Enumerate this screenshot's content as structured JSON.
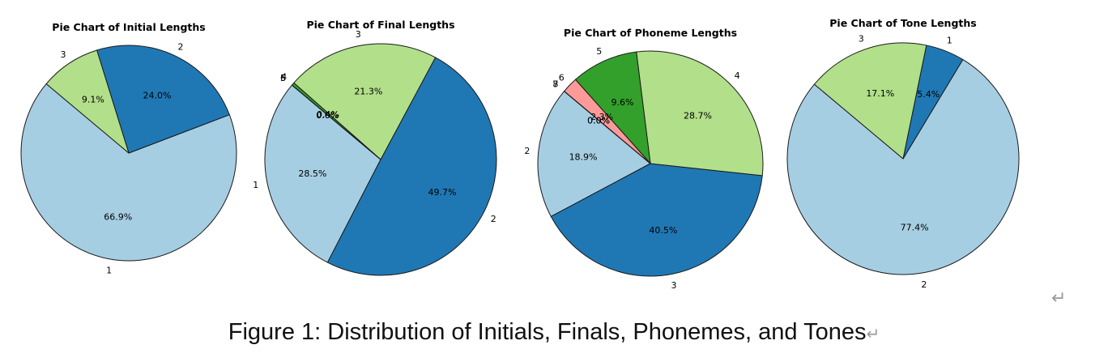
{
  "caption": "Figure 1: Distribution of Initials, Finals, Phonemes, and Tones",
  "return_mark": "↵",
  "chart_data": [
    {
      "type": "pie",
      "title": "Pie Chart of Initial Lengths",
      "start_angle_deg": 140,
      "slices": [
        {
          "label": "1",
          "value": 66.9,
          "pct_text": "66.9%",
          "color": "#a6cee3"
        },
        {
          "label": "2",
          "value": 24.0,
          "pct_text": "24.0%",
          "color": "#1f78b4"
        },
        {
          "label": "3",
          "value": 9.1,
          "pct_text": "9.1%",
          "color": "#b2df8a"
        }
      ]
    },
    {
      "type": "pie",
      "title": "Pie Chart of Final Lengths",
      "start_angle_deg": 140,
      "slices": [
        {
          "label": "1",
          "value": 28.5,
          "pct_text": "28.5%",
          "color": "#a6cee3"
        },
        {
          "label": "2",
          "value": 49.7,
          "pct_text": "49.7%",
          "color": "#1f78b4"
        },
        {
          "label": "3",
          "value": 21.3,
          "pct_text": "21.3%",
          "color": "#b2df8a"
        },
        {
          "label": "4",
          "value": 0.4,
          "pct_text": "0.4%",
          "color": "#33a02c"
        },
        {
          "label": "5",
          "value": 0.0,
          "pct_text": "0.0%",
          "color": "#fb9a99"
        },
        {
          "label": "6",
          "value": 0.0,
          "pct_text": "0.0%",
          "color": "#e31a1c"
        }
      ]
    },
    {
      "type": "pie",
      "title": "Pie Chart of Phoneme Lengths",
      "start_angle_deg": 140,
      "slices": [
        {
          "label": "2",
          "value": 18.9,
          "pct_text": "18.9%",
          "color": "#a6cee3"
        },
        {
          "label": "3",
          "value": 40.5,
          "pct_text": "40.5%",
          "color": "#1f78b4"
        },
        {
          "label": "4",
          "value": 28.7,
          "pct_text": "28.7%",
          "color": "#b2df8a"
        },
        {
          "label": "5",
          "value": 9.6,
          "pct_text": "9.6%",
          "color": "#33a02c"
        },
        {
          "label": "6",
          "value": 2.3,
          "pct_text": "2.3%",
          "color": "#fb9a99"
        },
        {
          "label": "7",
          "value": 0.0,
          "pct_text": "0.0%",
          "color": "#e31a1c"
        },
        {
          "label": "8",
          "value": 0.0,
          "pct_text": "0.0%",
          "color": "#fdbf6f"
        }
      ]
    },
    {
      "type": "pie",
      "title": "Pie Chart of Tone Lengths",
      "start_angle_deg": 140,
      "slices": [
        {
          "label": "2",
          "value": 77.4,
          "pct_text": "77.4%",
          "color": "#a6cee3"
        },
        {
          "label": "1",
          "value": 5.4,
          "pct_text": "5.4%",
          "color": "#1f78b4"
        },
        {
          "label": "3",
          "value": 17.1,
          "pct_text": "17.1%",
          "color": "#b2df8a"
        }
      ]
    }
  ]
}
